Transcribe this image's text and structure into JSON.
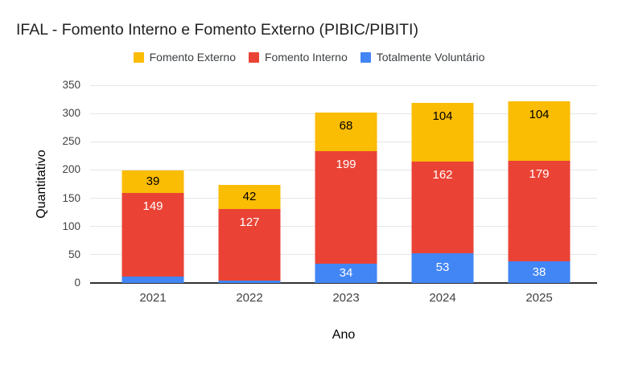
{
  "title": "IFAL - Fomento Interno e Fomento Externo (PIBIC/PIBITI)",
  "legend": [
    {
      "label": "Fomento Externo",
      "color": "#FBBC04"
    },
    {
      "label": "Fomento Interno",
      "color": "#EA4335"
    },
    {
      "label": "Totalmente Voluntário",
      "color": "#4285F4"
    }
  ],
  "chart_data": {
    "type": "bar",
    "stacked": true,
    "title": "IFAL - Fomento Interno e Fomento Externo (PIBIC/PIBITI)",
    "categories": [
      "2021",
      "2022",
      "2023",
      "2024",
      "2025"
    ],
    "series": [
      {
        "name": "Totalmente Voluntário",
        "color": "#4285F4",
        "label_color": "#ffffff",
        "values": [
          11,
          4,
          34,
          53,
          38
        ]
      },
      {
        "name": "Fomento Interno",
        "color": "#EA4335",
        "label_color": "#ffffff",
        "values": [
          149,
          127,
          199,
          162,
          179
        ]
      },
      {
        "name": "Fomento Externo",
        "color": "#FBBC04",
        "label_color": "#000000",
        "values": [
          39,
          42,
          68,
          104,
          104
        ]
      }
    ],
    "totals": [
      199,
      173,
      301,
      319,
      321
    ],
    "xlabel": "Ano",
    "ylabel": "Quantitativo",
    "ylim": [
      0,
      350
    ],
    "yticks": [
      0,
      50,
      100,
      150,
      200,
      250,
      300,
      350
    ],
    "grid": true,
    "legend_position": "top",
    "baseline_color": "#333333",
    "gridline_color": "#e6e6e6"
  }
}
